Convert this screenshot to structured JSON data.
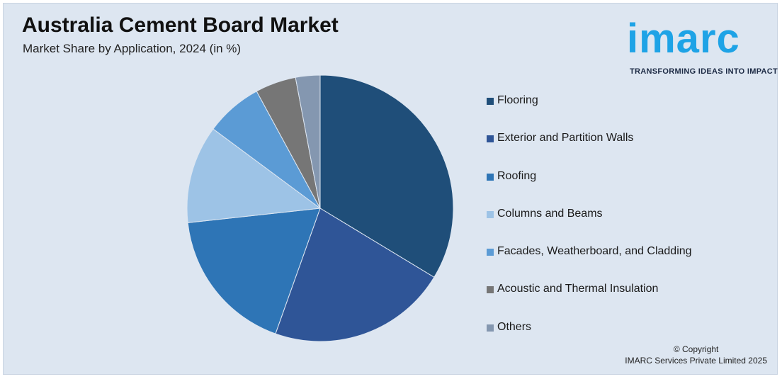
{
  "title": "Australia Cement Board Market",
  "subtitle": "Market Share by Application, 2024 (in %)",
  "logo": {
    "word": "imarc",
    "tagline": "TRANSFORMING IDEAS INTO IMPACT",
    "color": "#1ea3e6"
  },
  "copyright": {
    "line1": "© Copyright",
    "line2": "IMARC Services Private Limited 2025"
  },
  "chart_data": {
    "type": "pie",
    "title": "Australia Cement Board Market",
    "subtitle": "Market Share by Application, 2024 (in %)",
    "legend_position": "right",
    "categories": [
      "Flooring",
      "Exterior and Partition Walls",
      "Roofing",
      "Columns and Beams",
      "Facades, Weatherboard, and Cladding",
      "Acoustic and Thermal Insulation",
      "Others"
    ],
    "values": [
      34,
      22,
      18,
      12,
      7,
      5,
      3
    ],
    "colors": [
      "#1f4e79",
      "#2f5597",
      "#2e75b6",
      "#9dc3e6",
      "#5b9bd5",
      "#767676",
      "#8497b0"
    ]
  }
}
